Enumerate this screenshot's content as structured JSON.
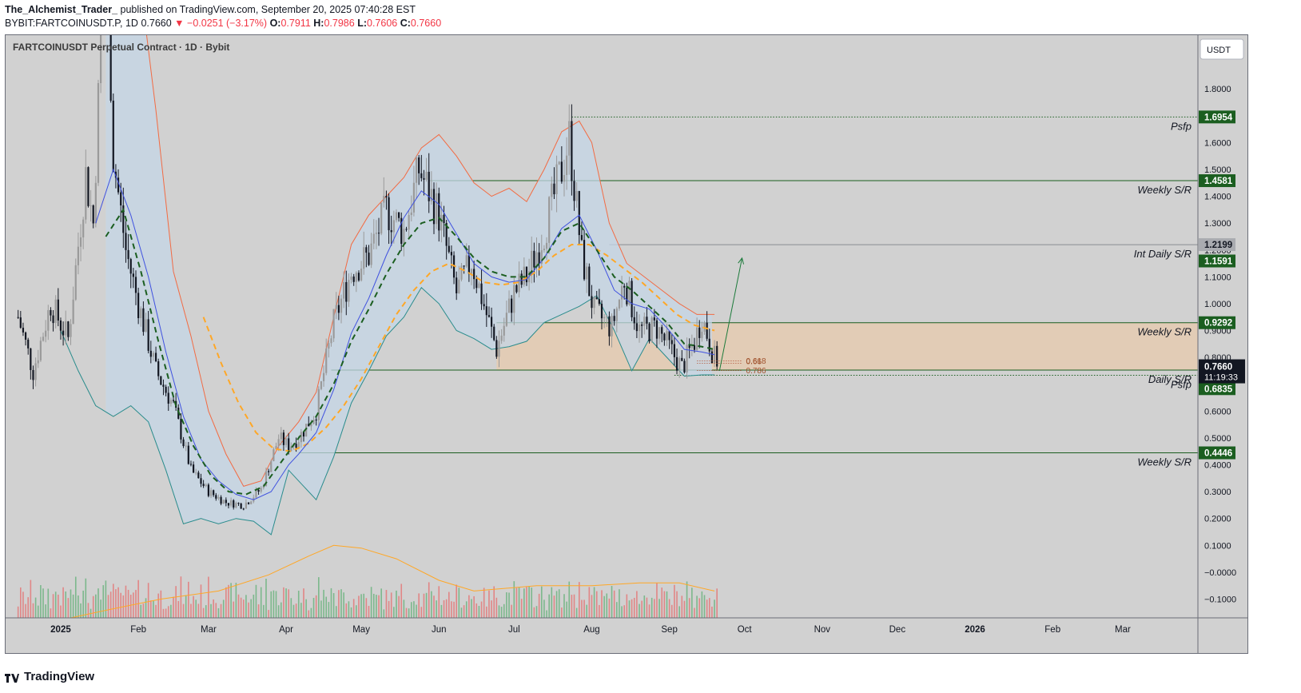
{
  "header": {
    "author": "The_Alchemist_Trader_",
    "published": " published on TradingView.com, September 20, 2025 07:40:28 EST",
    "symbol": "BYBIT:FARTCOINUSDT.P, 1D",
    "last": "0.7660",
    "change": "−0.0251 (−3.17%)",
    "o_label": "O:",
    "o": "0.7911",
    "h_label": "H:",
    "h": "0.7986",
    "l_label": "L:",
    "l": "0.7606",
    "c_label": "C:",
    "c": "0.7660"
  },
  "chart_title": "FARTCOINUSDT Perpetual Contract · 1D · Bybit",
  "currency": "USDT",
  "footer_brand": "TradingView",
  "colors": {
    "pane_bg": "#d1d1d1",
    "up": "#9a9a9a",
    "down": "#131722",
    "sr_line": "#1b5e20",
    "zone_fill": "#f0c9a0",
    "upper_band": "#f26b43",
    "lower_band": "#2a8c8c",
    "fast_ma": "#3f51e0",
    "dashed_ma_green": "#1b5e20",
    "dashed_ma_orange": "#ffa726",
    "vol_up": "#66b27a",
    "vol_down": "#e57373",
    "vol_ma": "#ffa726"
  },
  "chart_data": {
    "type": "candlestick",
    "timeframe": "1D",
    "x_range": [
      "2024-12-10",
      "2026-03-31"
    ],
    "y_range": [
      -0.17,
      2.0
    ],
    "x_ticks": [
      {
        "label": "2025",
        "date": "2025-01-01"
      },
      {
        "label": "Feb",
        "date": "2025-02-01"
      },
      {
        "label": "Mar",
        "date": "2025-03-01"
      },
      {
        "label": "Apr",
        "date": "2025-04-01"
      },
      {
        "label": "May",
        "date": "2025-05-01"
      },
      {
        "label": "Jun",
        "date": "2025-06-01"
      },
      {
        "label": "Jul",
        "date": "2025-07-01"
      },
      {
        "label": "Aug",
        "date": "2025-08-01"
      },
      {
        "label": "Sep",
        "date": "2025-09-01"
      },
      {
        "label": "Oct",
        "date": "2025-10-01"
      },
      {
        "label": "Nov",
        "date": "2025-11-01"
      },
      {
        "label": "Dec",
        "date": "2025-12-01"
      },
      {
        "label": "2026",
        "date": "2026-01-01"
      },
      {
        "label": "Feb",
        "date": "2026-02-01"
      },
      {
        "label": "Mar",
        "date": "2026-03-01"
      }
    ],
    "y_ticks": [
      {
        "label": "1.8000",
        "value": 1.8
      },
      {
        "label": "1.7000",
        "value": 1.7
      },
      {
        "label": "1.6000",
        "value": 1.6
      },
      {
        "label": "1.5000",
        "value": 1.5
      },
      {
        "label": "1.4000",
        "value": 1.4
      },
      {
        "label": "1.3000",
        "value": 1.3
      },
      {
        "label": "1.2000",
        "value": 1.2
      },
      {
        "label": "1.1000",
        "value": 1.1
      },
      {
        "label": "1.0000",
        "value": 1.0
      },
      {
        "label": "0.9000",
        "value": 0.9
      },
      {
        "label": "0.8000",
        "value": 0.8
      },
      {
        "label": "0.6000",
        "value": 0.6
      },
      {
        "label": "0.5000",
        "value": 0.5
      },
      {
        "label": "0.4000",
        "value": 0.4
      },
      {
        "label": "0.3000",
        "value": 0.3
      },
      {
        "label": "0.2000",
        "value": 0.2
      },
      {
        "label": "0.1000",
        "value": 0.1
      },
      {
        "label": "−0.0000",
        "value": 0.0
      },
      {
        "label": "−0.1000",
        "value": -0.1
      }
    ],
    "close_path": [
      [
        "2024-12-15",
        0.95
      ],
      [
        "2024-12-21",
        0.75
      ],
      [
        "2024-12-28",
        1.0
      ],
      [
        "2025-01-04",
        0.87
      ],
      [
        "2025-01-11",
        1.48
      ],
      [
        "2025-01-14",
        1.3
      ],
      [
        "2025-01-19",
        2.45
      ],
      [
        "2025-01-22",
        1.55
      ],
      [
        "2025-01-27",
        1.2
      ],
      [
        "2025-02-01",
        1.0
      ],
      [
        "2025-02-08",
        0.75
      ],
      [
        "2025-02-15",
        0.62
      ],
      [
        "2025-02-22",
        0.38
      ],
      [
        "2025-03-01",
        0.3
      ],
      [
        "2025-03-08",
        0.26
      ],
      [
        "2025-03-15",
        0.25
      ],
      [
        "2025-03-22",
        0.31
      ],
      [
        "2025-03-29",
        0.5
      ],
      [
        "2025-04-02",
        0.47
      ],
      [
        "2025-04-06",
        0.5
      ],
      [
        "2025-04-13",
        0.6
      ],
      [
        "2025-04-20",
        0.93
      ],
      [
        "2025-04-27",
        1.12
      ],
      [
        "2025-05-04",
        1.18
      ],
      [
        "2025-05-11",
        1.35
      ],
      [
        "2025-05-18",
        1.27
      ],
      [
        "2025-05-24",
        1.5
      ],
      [
        "2025-05-28",
        1.42
      ],
      [
        "2025-06-01",
        1.33
      ],
      [
        "2025-06-08",
        1.04
      ],
      [
        "2025-06-14",
        1.16
      ],
      [
        "2025-06-20",
        0.96
      ],
      [
        "2025-06-24",
        0.83
      ],
      [
        "2025-07-01",
        1.04
      ],
      [
        "2025-07-06",
        1.1
      ],
      [
        "2025-07-13",
        1.27
      ],
      [
        "2025-07-20",
        1.5
      ],
      [
        "2025-07-23",
        1.62
      ],
      [
        "2025-07-28",
        1.18
      ],
      [
        "2025-08-02",
        0.97
      ],
      [
        "2025-08-09",
        0.91
      ],
      [
        "2025-08-14",
        1.09
      ],
      [
        "2025-08-20",
        0.9
      ],
      [
        "2025-08-27",
        0.91
      ],
      [
        "2025-09-02",
        0.82
      ],
      [
        "2025-09-06",
        0.76
      ],
      [
        "2025-09-11",
        0.86
      ],
      [
        "2025-09-14",
        0.95
      ],
      [
        "2025-09-20",
        0.766
      ]
    ],
    "upper_band_path": [
      [
        "2025-01-19",
        2.35
      ],
      [
        "2025-02-01",
        2.25
      ],
      [
        "2025-02-08",
        1.72
      ],
      [
        "2025-02-15",
        1.12
      ],
      [
        "2025-02-22",
        0.88
      ],
      [
        "2025-03-01",
        0.6
      ],
      [
        "2025-03-08",
        0.44
      ],
      [
        "2025-03-15",
        0.32
      ],
      [
        "2025-03-22",
        0.34
      ],
      [
        "2025-03-29",
        0.47
      ],
      [
        "2025-04-06",
        0.56
      ],
      [
        "2025-04-13",
        0.67
      ],
      [
        "2025-04-20",
        0.95
      ],
      [
        "2025-04-27",
        1.22
      ],
      [
        "2025-05-04",
        1.33
      ],
      [
        "2025-05-11",
        1.4
      ],
      [
        "2025-05-18",
        1.47
      ],
      [
        "2025-05-25",
        1.58
      ],
      [
        "2025-06-01",
        1.63
      ],
      [
        "2025-06-08",
        1.55
      ],
      [
        "2025-06-15",
        1.45
      ],
      [
        "2025-06-22",
        1.4
      ],
      [
        "2025-06-29",
        1.43
      ],
      [
        "2025-07-06",
        1.38
      ],
      [
        "2025-07-13",
        1.5
      ],
      [
        "2025-07-20",
        1.64
      ],
      [
        "2025-07-27",
        1.68
      ],
      [
        "2025-08-01",
        1.6
      ],
      [
        "2025-08-08",
        1.3
      ],
      [
        "2025-08-15",
        1.15
      ],
      [
        "2025-08-22",
        1.1
      ],
      [
        "2025-08-29",
        1.05
      ],
      [
        "2025-09-05",
        1.0
      ],
      [
        "2025-09-12",
        0.96
      ],
      [
        "2025-09-19",
        0.96
      ]
    ],
    "lower_band_path": [
      [
        "2025-01-01",
        0.9
      ],
      [
        "2025-01-08",
        0.75
      ],
      [
        "2025-01-15",
        0.62
      ],
      [
        "2025-01-22",
        0.58
      ],
      [
        "2025-01-29",
        0.62
      ],
      [
        "2025-02-05",
        0.56
      ],
      [
        "2025-02-12",
        0.38
      ],
      [
        "2025-02-19",
        0.18
      ],
      [
        "2025-02-26",
        0.2
      ],
      [
        "2025-03-05",
        0.18
      ],
      [
        "2025-03-12",
        0.2
      ],
      [
        "2025-03-19",
        0.19
      ],
      [
        "2025-03-26",
        0.14
      ],
      [
        "2025-04-02",
        0.38
      ],
      [
        "2025-04-06",
        0.34
      ],
      [
        "2025-04-13",
        0.27
      ],
      [
        "2025-04-20",
        0.43
      ],
      [
        "2025-04-27",
        0.63
      ],
      [
        "2025-05-04",
        0.75
      ],
      [
        "2025-05-11",
        0.88
      ],
      [
        "2025-05-18",
        0.95
      ],
      [
        "2025-05-25",
        1.06
      ],
      [
        "2025-06-01",
        1.0
      ],
      [
        "2025-06-08",
        0.9
      ],
      [
        "2025-06-15",
        0.87
      ],
      [
        "2025-06-22",
        0.83
      ],
      [
        "2025-06-29",
        0.84
      ],
      [
        "2025-07-06",
        0.86
      ],
      [
        "2025-07-13",
        0.93
      ],
      [
        "2025-07-20",
        0.96
      ],
      [
        "2025-07-27",
        0.99
      ],
      [
        "2025-08-03",
        1.03
      ],
      [
        "2025-08-10",
        0.9
      ],
      [
        "2025-08-17",
        0.75
      ],
      [
        "2025-08-24",
        0.87
      ],
      [
        "2025-08-31",
        0.8
      ],
      [
        "2025-09-07",
        0.73
      ],
      [
        "2025-09-14",
        0.735
      ],
      [
        "2025-09-19",
        0.735
      ]
    ],
    "fast_ma_path": [
      [
        "2025-01-15",
        1.3
      ],
      [
        "2025-01-22",
        1.5
      ],
      [
        "2025-01-29",
        1.33
      ],
      [
        "2025-02-05",
        1.1
      ],
      [
        "2025-02-12",
        0.82
      ],
      [
        "2025-02-19",
        0.58
      ],
      [
        "2025-02-26",
        0.42
      ],
      [
        "2025-03-05",
        0.34
      ],
      [
        "2025-03-12",
        0.29
      ],
      [
        "2025-03-19",
        0.27
      ],
      [
        "2025-03-26",
        0.3
      ],
      [
        "2025-04-02",
        0.4
      ],
      [
        "2025-04-06",
        0.44
      ],
      [
        "2025-04-13",
        0.52
      ],
      [
        "2025-04-20",
        0.68
      ],
      [
        "2025-04-27",
        0.89
      ],
      [
        "2025-05-04",
        1.02
      ],
      [
        "2025-05-11",
        1.18
      ],
      [
        "2025-05-18",
        1.32
      ],
      [
        "2025-05-25",
        1.42
      ],
      [
        "2025-06-01",
        1.37
      ],
      [
        "2025-06-08",
        1.26
      ],
      [
        "2025-06-15",
        1.15
      ],
      [
        "2025-06-22",
        1.1
      ],
      [
        "2025-06-29",
        1.08
      ],
      [
        "2025-07-06",
        1.09
      ],
      [
        "2025-07-13",
        1.17
      ],
      [
        "2025-07-20",
        1.28
      ],
      [
        "2025-07-27",
        1.33
      ],
      [
        "2025-08-03",
        1.2
      ],
      [
        "2025-08-10",
        1.05
      ],
      [
        "2025-08-17",
        1.0
      ],
      [
        "2025-08-24",
        0.98
      ],
      [
        "2025-08-31",
        0.91
      ],
      [
        "2025-09-07",
        0.83
      ],
      [
        "2025-09-14",
        0.82
      ],
      [
        "2025-09-19",
        0.81
      ]
    ],
    "green_dashed_ma_path": [
      [
        "2025-01-19",
        1.25
      ],
      [
        "2025-01-26",
        1.35
      ],
      [
        "2025-02-02",
        1.12
      ],
      [
        "2025-02-09",
        0.86
      ],
      [
        "2025-02-16",
        0.62
      ],
      [
        "2025-02-23",
        0.47
      ],
      [
        "2025-03-02",
        0.36
      ],
      [
        "2025-03-09",
        0.3
      ],
      [
        "2025-03-16",
        0.29
      ],
      [
        "2025-03-23",
        0.32
      ],
      [
        "2025-03-30",
        0.41
      ],
      [
        "2025-04-06",
        0.5
      ],
      [
        "2025-04-13",
        0.58
      ],
      [
        "2025-04-20",
        0.7
      ],
      [
        "2025-04-27",
        0.86
      ],
      [
        "2025-05-04",
        0.98
      ],
      [
        "2025-05-11",
        1.11
      ],
      [
        "2025-05-18",
        1.22
      ],
      [
        "2025-05-25",
        1.3
      ],
      [
        "2025-06-01",
        1.32
      ],
      [
        "2025-06-08",
        1.25
      ],
      [
        "2025-06-15",
        1.17
      ],
      [
        "2025-06-22",
        1.12
      ],
      [
        "2025-06-29",
        1.1
      ],
      [
        "2025-07-06",
        1.1
      ],
      [
        "2025-07-13",
        1.17
      ],
      [
        "2025-07-20",
        1.27
      ],
      [
        "2025-07-27",
        1.3
      ],
      [
        "2025-08-03",
        1.2
      ],
      [
        "2025-08-10",
        1.1
      ],
      [
        "2025-08-17",
        1.05
      ],
      [
        "2025-08-24",
        0.99
      ],
      [
        "2025-08-31",
        0.93
      ],
      [
        "2025-09-07",
        0.85
      ],
      [
        "2025-09-14",
        0.84
      ],
      [
        "2025-09-19",
        0.83
      ]
    ],
    "orange_dashed_ma_path": [
      [
        "2025-02-27",
        0.95
      ],
      [
        "2025-03-06",
        0.78
      ],
      [
        "2025-03-13",
        0.63
      ],
      [
        "2025-03-20",
        0.52
      ],
      [
        "2025-03-27",
        0.46
      ],
      [
        "2025-04-03",
        0.45
      ],
      [
        "2025-04-10",
        0.48
      ],
      [
        "2025-04-17",
        0.54
      ],
      [
        "2025-04-24",
        0.62
      ],
      [
        "2025-05-01",
        0.72
      ],
      [
        "2025-05-08",
        0.84
      ],
      [
        "2025-05-15",
        0.96
      ],
      [
        "2025-05-22",
        1.05
      ],
      [
        "2025-05-29",
        1.12
      ],
      [
        "2025-06-05",
        1.15
      ],
      [
        "2025-06-12",
        1.12
      ],
      [
        "2025-06-19",
        1.08
      ],
      [
        "2025-06-26",
        1.07
      ],
      [
        "2025-07-03",
        1.08
      ],
      [
        "2025-07-10",
        1.12
      ],
      [
        "2025-07-17",
        1.18
      ],
      [
        "2025-07-24",
        1.22
      ],
      [
        "2025-07-31",
        1.22
      ],
      [
        "2025-08-07",
        1.18
      ],
      [
        "2025-08-14",
        1.13
      ],
      [
        "2025-08-21",
        1.08
      ],
      [
        "2025-08-28",
        1.02
      ],
      [
        "2025-09-04",
        0.96
      ],
      [
        "2025-09-11",
        0.92
      ],
      [
        "2025-09-19",
        0.9
      ]
    ],
    "volume_ma_path": [
      [
        "2025-01-05",
        -0.17
      ],
      [
        "2025-01-20",
        -0.14
      ],
      [
        "2025-02-10",
        -0.1
      ],
      [
        "2025-03-05",
        -0.07
      ],
      [
        "2025-03-25",
        -0.01
      ],
      [
        "2025-04-10",
        0.06
      ],
      [
        "2025-04-20",
        0.1
      ],
      [
        "2025-05-01",
        0.09
      ],
      [
        "2025-05-15",
        0.05
      ],
      [
        "2025-06-01",
        -0.03
      ],
      [
        "2025-06-15",
        -0.07
      ],
      [
        "2025-07-10",
        -0.05
      ],
      [
        "2025-08-01",
        -0.05
      ],
      [
        "2025-08-20",
        -0.04
      ],
      [
        "2025-09-05",
        -0.04
      ],
      [
        "2025-09-19",
        -0.07
      ]
    ],
    "levels": [
      {
        "price": 1.6954,
        "label": "1.6954",
        "note": "Psfp",
        "from": "2025-07-24",
        "style": "dotted"
      },
      {
        "price": 1.4581,
        "label": "1.4581",
        "note": "Weekly S/R",
        "from": "2025-05-28",
        "style": "solid"
      },
      {
        "price": 1.2199,
        "label": "1.2199",
        "note": "Int Daily S/R",
        "from": "2025-08-08",
        "style": "solid_grey"
      },
      {
        "price": 1.1591,
        "label": "1.1591",
        "note": "",
        "from": null,
        "style": "none"
      },
      {
        "price": 0.9292,
        "label": "0.9292",
        "note": "Weekly S/R",
        "from": "2025-06-24",
        "style": "solid"
      },
      {
        "price": 0.7529,
        "label": "0.7529",
        "note": "Daily S/R",
        "from": "2025-04-19",
        "style": "solid"
      },
      {
        "price": 0.7335,
        "label": "0.7335",
        "note": "Psfp",
        "from": "2025-09-03",
        "style": "dotted"
      },
      {
        "price": 0.6835,
        "label": "0.6835",
        "note": "",
        "from": null,
        "style": "none"
      },
      {
        "price": 0.4446,
        "label": "0.4446",
        "note": "Weekly S/R",
        "from": "2025-04-06",
        "style": "solid"
      }
    ],
    "zone": {
      "from": "2025-06-24",
      "to": "2026-03-31",
      "top": 0.9292,
      "bottom": 0.7529
    },
    "fib_levels": [
      {
        "label": "0.618",
        "value": 0.787
      },
      {
        "label": "0.66",
        "value": 0.778
      },
      {
        "label": "0.786",
        "value": 0.751
      }
    ],
    "projection_arrow": {
      "from": [
        "2025-09-21",
        0.75
      ],
      "to": [
        "2025-09-30",
        1.17
      ]
    },
    "last_price": {
      "value": 0.766,
      "label": "0.7660",
      "countdown": "11:19:33"
    }
  }
}
